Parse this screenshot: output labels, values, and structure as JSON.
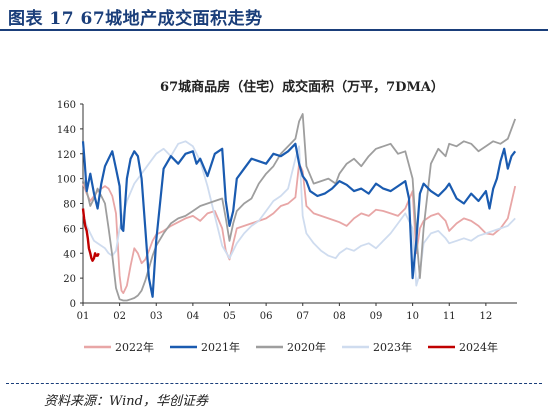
{
  "figure": {
    "title": "图表 17   67城地产成交面积走势",
    "source": "资料来源：Wind，华创证券"
  },
  "chart_data": {
    "type": "line",
    "title": "67城商品房（住宅）成交面积（万平，7DMA）",
    "xlabel": "",
    "ylabel": "",
    "x_ticks": [
      "01",
      "02",
      "03",
      "04",
      "05",
      "06",
      "07",
      "08",
      "09",
      "10",
      "11",
      "12"
    ],
    "xlim": [
      1,
      12.85
    ],
    "ylim": [
      0,
      160
    ],
    "y_ticks": [
      0,
      20,
      40,
      60,
      80,
      100,
      120,
      140,
      160
    ],
    "grid": false,
    "legend_position": "bottom",
    "series": [
      {
        "name": "2022年",
        "color": "#e8a6a6",
        "x": [
          1.0,
          1.1,
          1.2,
          1.3,
          1.4,
          1.5,
          1.6,
          1.7,
          1.8,
          1.9,
          2.0,
          2.05,
          2.1,
          2.2,
          2.3,
          2.4,
          2.5,
          2.6,
          2.7,
          2.8,
          2.9,
          3.0,
          3.2,
          3.4,
          3.6,
          3.8,
          4.0,
          4.2,
          4.4,
          4.6,
          4.8,
          4.9,
          5.0,
          5.1,
          5.2,
          5.4,
          5.6,
          5.8,
          6.0,
          6.2,
          6.4,
          6.6,
          6.8,
          6.9,
          7.0,
          7.1,
          7.3,
          7.5,
          7.7,
          7.9,
          8.0,
          8.2,
          8.4,
          8.6,
          8.8,
          9.0,
          9.2,
          9.4,
          9.6,
          9.8,
          10.0,
          10.1,
          10.2,
          10.3,
          10.5,
          10.7,
          10.9,
          11.0,
          11.2,
          11.4,
          11.6,
          11.8,
          12.0,
          12.2,
          12.4,
          12.6,
          12.8
        ],
        "y": [
          96,
          88,
          82,
          86,
          90,
          92,
          94,
          92,
          86,
          72,
          22,
          10,
          8,
          14,
          30,
          44,
          40,
          32,
          35,
          42,
          50,
          55,
          58,
          62,
          65,
          68,
          70,
          66,
          72,
          74,
          60,
          42,
          35,
          48,
          60,
          62,
          64,
          66,
          68,
          72,
          78,
          80,
          85,
          112,
          106,
          78,
          72,
          70,
          68,
          66,
          65,
          62,
          68,
          72,
          70,
          75,
          74,
          72,
          70,
          76,
          90,
          40,
          60,
          66,
          70,
          72,
          66,
          58,
          64,
          68,
          66,
          62,
          56,
          55,
          60,
          68,
          94
        ]
      },
      {
        "name": "2021年",
        "color": "#1a5bb0",
        "x": [
          1.0,
          1.05,
          1.1,
          1.2,
          1.3,
          1.4,
          1.5,
          1.6,
          1.7,
          1.8,
          1.9,
          2.0,
          2.05,
          2.1,
          2.2,
          2.3,
          2.4,
          2.5,
          2.6,
          2.7,
          2.8,
          2.9,
          3.0,
          3.2,
          3.4,
          3.6,
          3.8,
          4.0,
          4.1,
          4.2,
          4.4,
          4.6,
          4.8,
          4.9,
          5.0,
          5.1,
          5.2,
          5.4,
          5.6,
          5.8,
          6.0,
          6.2,
          6.4,
          6.6,
          6.8,
          6.9,
          7.0,
          7.1,
          7.2,
          7.4,
          7.6,
          7.8,
          8.0,
          8.2,
          8.4,
          8.6,
          8.8,
          9.0,
          9.2,
          9.4,
          9.6,
          9.8,
          9.9,
          10.0,
          10.1,
          10.2,
          10.3,
          10.5,
          10.7,
          10.9,
          11.0,
          11.2,
          11.4,
          11.6,
          11.8,
          12.0,
          12.1,
          12.2,
          12.3,
          12.4,
          12.5,
          12.6,
          12.7,
          12.8
        ],
        "y": [
          130,
          112,
          90,
          104,
          88,
          76,
          96,
          110,
          116,
          122,
          108,
          94,
          60,
          58,
          100,
          116,
          122,
          118,
          100,
          60,
          20,
          5,
          50,
          108,
          118,
          112,
          120,
          122,
          112,
          116,
          102,
          120,
          124,
          82,
          62,
          74,
          100,
          108,
          116,
          114,
          112,
          120,
          118,
          122,
          128,
          112,
          102,
          98,
          90,
          86,
          88,
          92,
          98,
          95,
          90,
          92,
          88,
          96,
          92,
          90,
          94,
          98,
          84,
          20,
          50,
          88,
          96,
          90,
          86,
          92,
          96,
          84,
          80,
          88,
          82,
          90,
          76,
          92,
          100,
          114,
          124,
          108,
          118,
          122
        ]
      },
      {
        "name": "2020年",
        "color": "#9e9e9e",
        "x": [
          1.0,
          1.1,
          1.2,
          1.3,
          1.4,
          1.5,
          1.6,
          1.7,
          1.8,
          1.9,
          2.0,
          2.1,
          2.2,
          2.3,
          2.4,
          2.5,
          2.6,
          2.7,
          2.8,
          2.9,
          3.0,
          3.2,
          3.4,
          3.6,
          3.8,
          4.0,
          4.2,
          4.4,
          4.6,
          4.8,
          4.9,
          5.0,
          5.1,
          5.2,
          5.4,
          5.6,
          5.8,
          6.0,
          6.2,
          6.4,
          6.6,
          6.8,
          6.9,
          7.0,
          7.1,
          7.3,
          7.5,
          7.7,
          7.9,
          8.0,
          8.2,
          8.4,
          8.6,
          8.8,
          9.0,
          9.2,
          9.4,
          9.6,
          9.8,
          10.0,
          10.1,
          10.2,
          10.3,
          10.5,
          10.7,
          10.9,
          11.0,
          11.2,
          11.4,
          11.6,
          11.8,
          12.0,
          12.2,
          12.4,
          12.6,
          12.8
        ],
        "y": [
          100,
          90,
          78,
          84,
          92,
          86,
          80,
          60,
          38,
          12,
          3,
          2,
          2,
          3,
          4,
          6,
          10,
          18,
          28,
          38,
          46,
          56,
          64,
          68,
          70,
          74,
          78,
          80,
          82,
          84,
          68,
          50,
          64,
          74,
          80,
          84,
          96,
          104,
          110,
          120,
          126,
          132,
          146,
          152,
          110,
          96,
          98,
          100,
          96,
          104,
          112,
          116,
          110,
          118,
          124,
          126,
          128,
          120,
          122,
          100,
          55,
          20,
          60,
          112,
          124,
          118,
          128,
          126,
          130,
          128,
          122,
          126,
          130,
          128,
          132,
          148
        ]
      },
      {
        "name": "2023年",
        "color": "#cfdcef",
        "x": [
          1.0,
          1.1,
          1.2,
          1.3,
          1.4,
          1.5,
          1.6,
          1.7,
          1.8,
          1.9,
          2.0,
          2.2,
          2.4,
          2.6,
          2.8,
          3.0,
          3.2,
          3.4,
          3.6,
          3.8,
          4.0,
          4.2,
          4.4,
          4.6,
          4.8,
          5.0,
          5.2,
          5.4,
          5.6,
          5.8,
          6.0,
          6.2,
          6.4,
          6.6,
          6.8,
          6.9,
          7.0,
          7.1,
          7.3,
          7.5,
          7.7,
          7.9,
          8.0,
          8.2,
          8.4,
          8.6,
          8.8,
          9.0,
          9.2,
          9.4,
          9.6,
          9.8,
          10.0,
          10.1,
          10.2,
          10.3,
          10.5,
          10.7,
          10.9,
          11.0,
          11.2,
          11.4,
          11.6,
          11.8,
          12.0,
          12.2,
          12.4,
          12.6,
          12.8
        ],
        "y": [
          72,
          62,
          56,
          50,
          48,
          46,
          44,
          40,
          38,
          42,
          60,
          82,
          96,
          104,
          112,
          120,
          124,
          118,
          128,
          130,
          126,
          114,
          94,
          70,
          46,
          36,
          48,
          56,
          62,
          66,
          74,
          82,
          86,
          92,
          116,
          126,
          70,
          56,
          48,
          42,
          38,
          36,
          40,
          44,
          42,
          46,
          48,
          44,
          50,
          56,
          64,
          72,
          60,
          14,
          24,
          48,
          56,
          58,
          52,
          48,
          50,
          52,
          50,
          54,
          56,
          58,
          60,
          62,
          68
        ]
      },
      {
        "name": "2024年",
        "color": "#c00000",
        "x": [
          1.0,
          1.03,
          1.06,
          1.1,
          1.13,
          1.16,
          1.2,
          1.23,
          1.26,
          1.3,
          1.33,
          1.36,
          1.4,
          1.43
        ],
        "y": [
          76,
          68,
          62,
          58,
          52,
          44,
          40,
          36,
          34,
          36,
          40,
          38,
          38,
          40
        ]
      }
    ]
  }
}
